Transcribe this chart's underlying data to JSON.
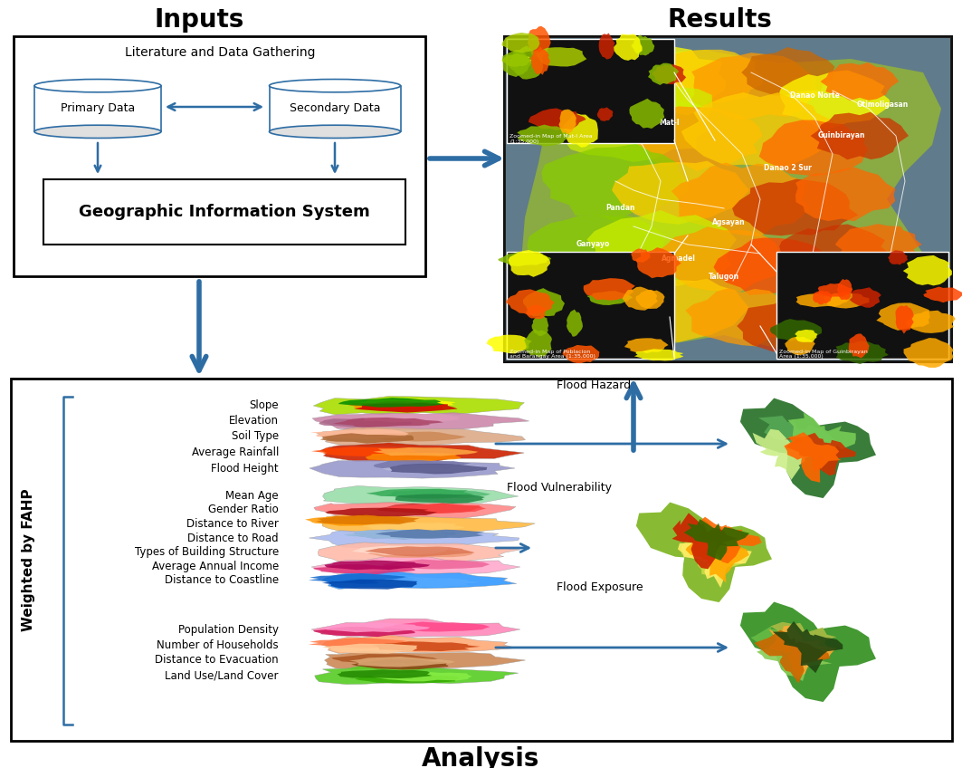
{
  "title_inputs": "Inputs",
  "title_results": "Results",
  "title_analysis": "Analysis",
  "label_literature": "Literature and Data Gathering",
  "label_primary": "Primary Data",
  "label_secondary": "Secondary Data",
  "label_gis": "Geographic Information System",
  "label_weighted": "Weighted by FAHP",
  "arrow_color": "#2E6DA4",
  "box_edge_color": "#000000",
  "text_color_dark": "#000000",
  "cylinder_edge_color": "#2E6DA4",
  "factors_group1": [
    "Slope",
    "Elevation",
    "Soil Type",
    "Average Rainfall",
    "Flood Height"
  ],
  "factors_group2": [
    "Mean Age",
    "Gender Ratio",
    "Distance to River",
    "Distance to Road",
    "Types of Building Structure",
    "Average Annual Income",
    "Distance to Coastline"
  ],
  "factors_group3": [
    "Population Density",
    "Number of Households",
    "Distance to Evacuation",
    "Land Use/Land Cover"
  ],
  "result_labels": [
    "Flood Hazard",
    "Flood Vulnerability",
    "Flood Exposure"
  ],
  "bg_color": "#FFFFFF",
  "layer_colors_g1": [
    [
      "#aadd00",
      "#ffff00",
      "#ff8800",
      "#cc0000",
      "#008800"
    ],
    [
      "#cc88aa",
      "#aa6688",
      "#dd99bb",
      "#aa4466"
    ],
    [
      "#ddaa88",
      "#cc8855",
      "#ffbb99",
      "#aa6633"
    ],
    [
      "#cc2200",
      "#ff4400",
      "#ff8800",
      "#ffaa44"
    ],
    [
      "#9999cc",
      "#7777aa",
      "#bbbbdd",
      "#555588"
    ]
  ],
  "layer_colors_g2": [
    [
      "#99ddaa",
      "#55bb77",
      "#33aa55",
      "#22884433"
    ],
    [
      "#ff8888",
      "#cc3333",
      "#ff4444",
      "#aa1111"
    ],
    [
      "#ffbb44",
      "#ff9900",
      "#ffcc66",
      "#dd7700"
    ],
    [
      "#aabbee",
      "#7799cc",
      "#99bbdd",
      "#5577aa"
    ],
    [
      "#ffbbaa",
      "#ee9977",
      "#ffddcc",
      "#dd7755"
    ],
    [
      "#ffaacc",
      "#ee6699",
      "#dd3377",
      "#aa0055"
    ],
    [
      "#3399ff",
      "#1166cc",
      "#55aaff",
      "#0044aa"
    ]
  ],
  "layer_colors_g3": [
    [
      "#ff88bb",
      "#ff4488",
      "#cc1155",
      "#ff99cc"
    ],
    [
      "#ffaa77",
      "#ff7744",
      "#cc4411",
      "#ffcc99"
    ],
    [
      "#cc8855",
      "#aa5522",
      "#884411",
      "#ddaa77"
    ],
    [
      "#55cc22",
      "#33aa00",
      "#88ee44",
      "#22880011"
    ]
  ]
}
